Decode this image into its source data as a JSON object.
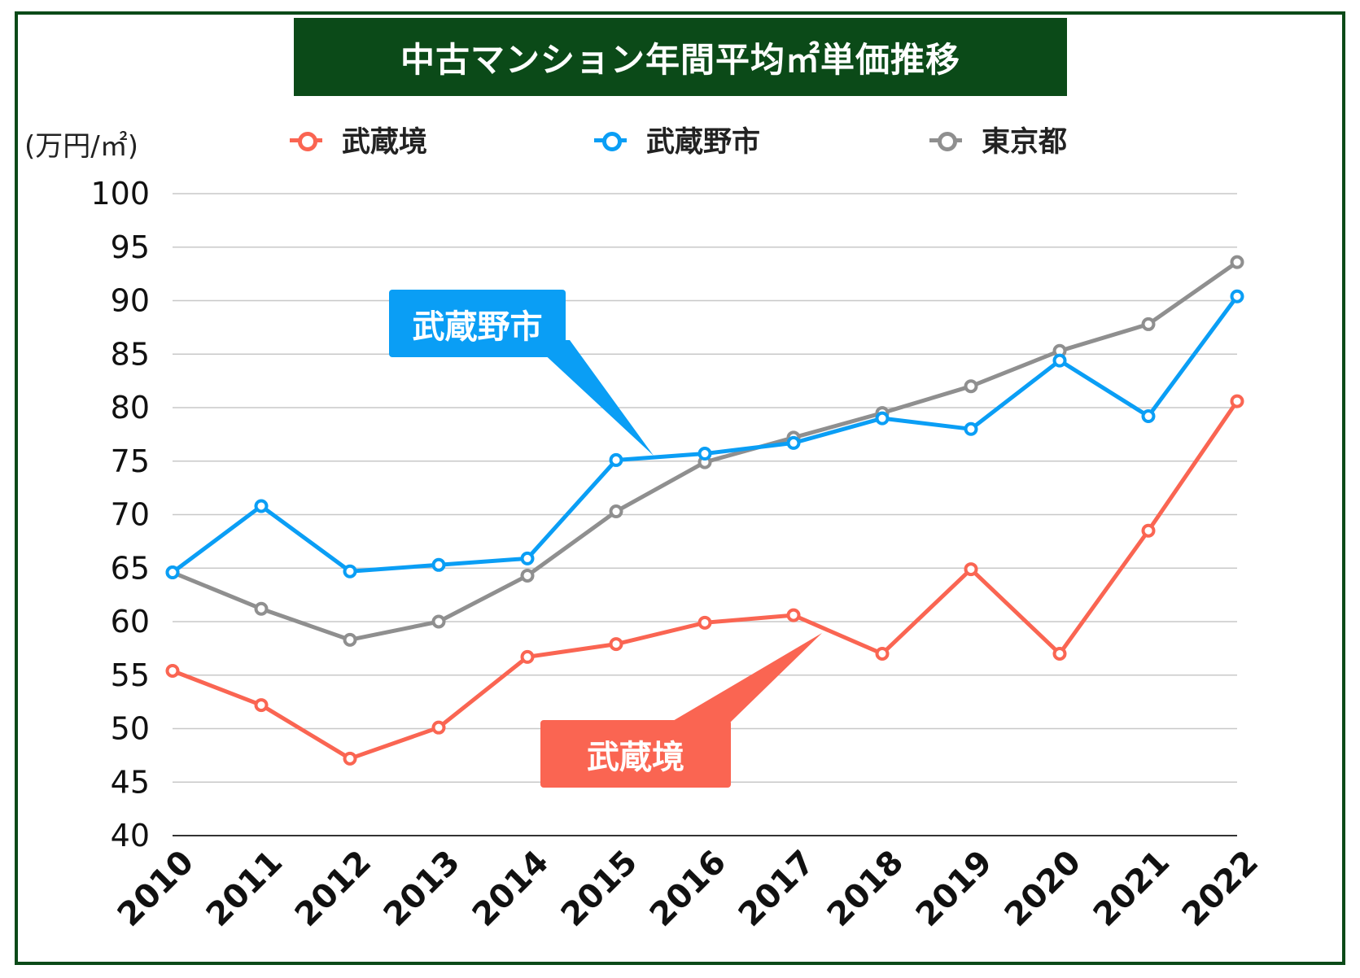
{
  "title": "中古マンション年間平均㎡単価推移",
  "unit_label": "(万円/㎡)",
  "colors": {
    "frame": "#0b4a18",
    "musashisakai": "#fa6552",
    "musashino": "#0a9ef5",
    "tokyo": "#8f8f8f"
  },
  "callouts": {
    "musashino": "武蔵野市",
    "musashisakai": "武蔵境"
  },
  "chart_data": {
    "type": "line",
    "x": [
      "2010",
      "2011",
      "2012",
      "2013",
      "2014",
      "2015",
      "2016",
      "2017",
      "2018",
      "2019",
      "2020",
      "2021",
      "2022"
    ],
    "yticks": [
      "40",
      "45",
      "50",
      "55",
      "60",
      "65",
      "70",
      "75",
      "80",
      "85",
      "90",
      "95",
      "100"
    ],
    "ylim": [
      40,
      100
    ],
    "grid": true,
    "legend_position": "top",
    "series": [
      {
        "name": "武蔵境",
        "color": "#fa6552",
        "values": [
          55.4,
          52.2,
          47.2,
          50.1,
          56.7,
          57.9,
          59.9,
          60.6,
          57.0,
          64.9,
          57.0,
          68.5,
          80.6
        ]
      },
      {
        "name": "武蔵野市",
        "color": "#0a9ef5",
        "values": [
          64.6,
          70.8,
          64.7,
          65.3,
          65.9,
          75.1,
          75.7,
          76.7,
          79.0,
          78.0,
          84.4,
          79.2,
          90.4
        ]
      },
      {
        "name": "東京都",
        "color": "#8f8f8f",
        "values": [
          64.6,
          61.2,
          58.3,
          60.0,
          64.3,
          70.3,
          74.9,
          77.2,
          79.5,
          82.0,
          85.3,
          87.8,
          93.6
        ]
      }
    ]
  }
}
